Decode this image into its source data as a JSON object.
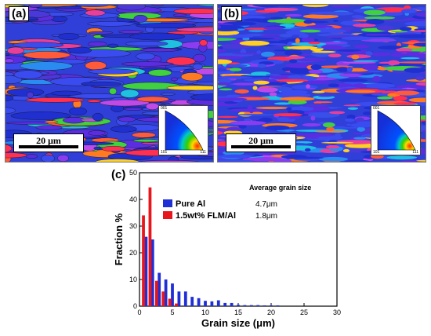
{
  "panel_a": {
    "label": "(a)",
    "scalebar": "20 μm",
    "ipf": {
      "top": "001",
      "left": "101",
      "right": "111"
    }
  },
  "panel_b": {
    "label": "(b)",
    "scalebar": "20 μm",
    "ipf": {
      "top": "001",
      "left": "101",
      "right": "111"
    }
  },
  "panel_c": {
    "label": "(c)"
  },
  "chart_data": {
    "type": "bar",
    "xlabel": "Grain size (μm)",
    "ylabel": "Fraction %",
    "xlim": [
      0,
      30
    ],
    "ylim": [
      0,
      50
    ],
    "xticks": [
      "0",
      "5",
      "10",
      "15",
      "20",
      "25",
      "30"
    ],
    "yticks": [
      "0",
      "10",
      "20",
      "30",
      "40",
      "50"
    ],
    "grid": false,
    "legend_placement": "top-center",
    "annotation_title": "Average grain size",
    "series": [
      {
        "name": "Pure Al",
        "color": "#1f2fd6",
        "average": "4.7μm",
        "x": [
          1,
          2,
          3,
          4,
          5,
          6,
          7,
          8,
          9,
          10,
          11,
          12,
          13,
          14,
          15,
          16,
          17,
          18,
          19,
          20,
          21
        ],
        "values": [
          26,
          25,
          12.5,
          10,
          8.5,
          5.5,
          5.5,
          3.5,
          3,
          2,
          1.8,
          2.2,
          1.2,
          1.2,
          0.5,
          0.4,
          0.4,
          0.4,
          0.3,
          0.3,
          0.3
        ]
      },
      {
        "name": "1.5wt% FLM/Al",
        "color": "#e8161c",
        "average": "1.8μm",
        "x": [
          0.6,
          1.6,
          2.6,
          3.6,
          4.6,
          5.6
        ],
        "values": [
          34,
          44.5,
          9.5,
          5.5,
          2.8,
          1
        ]
      }
    ]
  }
}
